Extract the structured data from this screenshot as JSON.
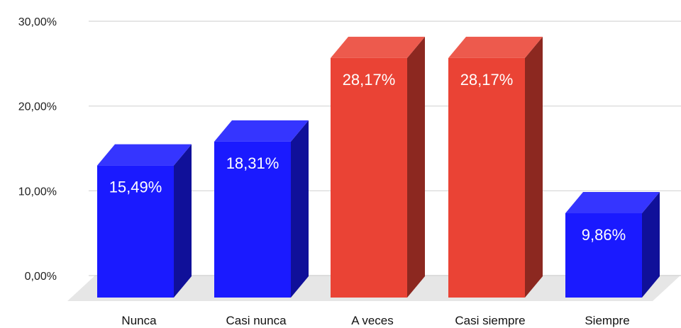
{
  "chart_data": {
    "type": "bar",
    "categories": [
      "Nunca",
      "Casi nunca",
      "A veces",
      "Casi siempre",
      "Siempre"
    ],
    "values": [
      15.49,
      18.31,
      28.17,
      28.17,
      9.86
    ],
    "value_labels": [
      "15,49%",
      "18,31%",
      "28,17%",
      "28,17%",
      "9,86%"
    ],
    "bar_colors": [
      "#1a1aff",
      "#1a1aff",
      "#ea4335",
      "#ea4335",
      "#1a1aff"
    ],
    "y_ticks": [
      0,
      10,
      20,
      30
    ],
    "y_tick_labels": [
      "0,00%",
      "10,00%",
      "20,00%",
      "30,00%"
    ],
    "ylim": [
      0,
      30
    ],
    "title": "",
    "xlabel": "",
    "ylabel": "",
    "grid": true,
    "style": "3d-column"
  },
  "colors": {
    "blue": "#1a1aff",
    "red": "#ea4335",
    "grid": "#d6d6d6",
    "floor": "#e6e6e6"
  }
}
